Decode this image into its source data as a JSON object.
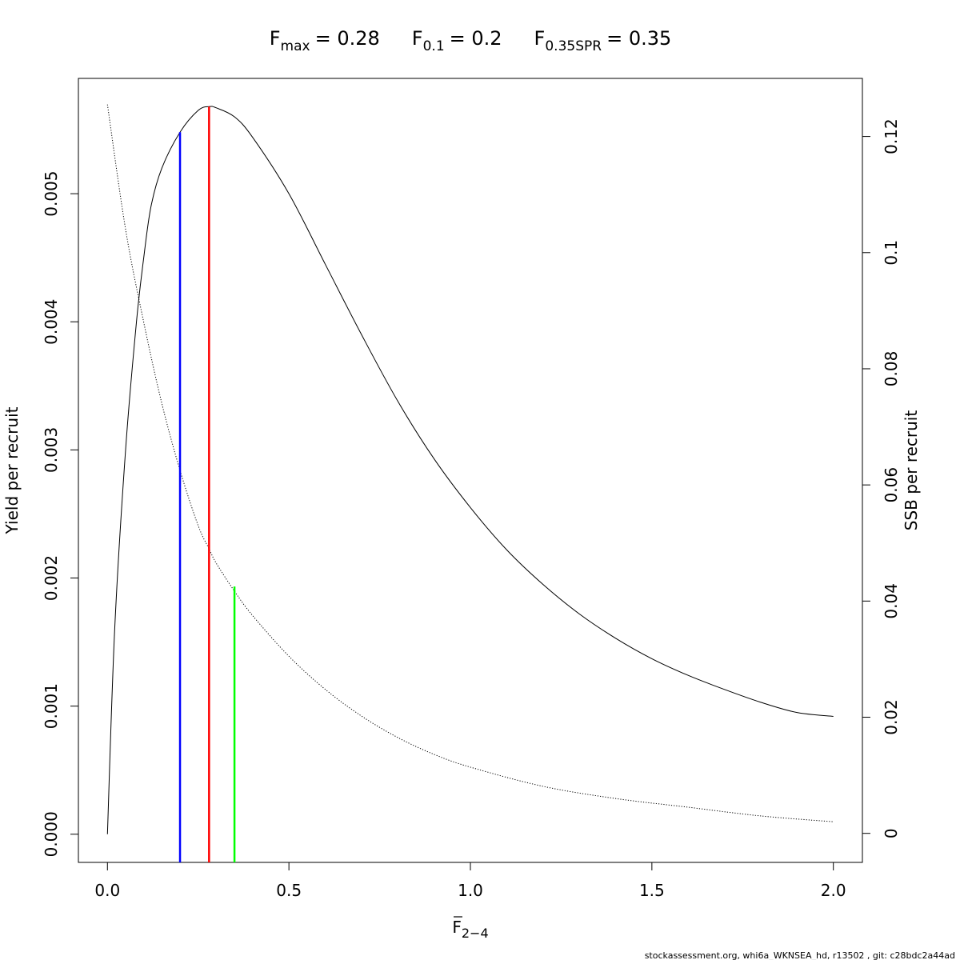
{
  "chart_data": {
    "type": "line",
    "title": {
      "fmax": {
        "label": "F",
        "sub": "max",
        "value": "= 0.28"
      },
      "f01": {
        "label": "F",
        "sub": "0.1",
        "value": "= 0.2"
      },
      "f035spr": {
        "label": "F",
        "sub": "0.35SPR",
        "value": "= 0.35"
      }
    },
    "xlabel": {
      "main": "F",
      "sub": "2−4"
    },
    "ylabel_left": "Yield per recruit",
    "ylabel_right": "SSB per recruit",
    "xlim": [
      -0.08,
      2.08
    ],
    "ylim_left": [
      -0.00022,
      0.0059
    ],
    "ylim_right": [
      -0.005,
      0.13
    ],
    "x_ticks": [
      {
        "value": 0.0,
        "label": "0.0"
      },
      {
        "value": 0.5,
        "label": "0.5"
      },
      {
        "value": 1.0,
        "label": "1.0"
      },
      {
        "value": 1.5,
        "label": "1.5"
      },
      {
        "value": 2.0,
        "label": "2.0"
      }
    ],
    "y_left_ticks": [
      {
        "value": 0.0,
        "label": "0.000"
      },
      {
        "value": 0.001,
        "label": "0.001"
      },
      {
        "value": 0.002,
        "label": "0.002"
      },
      {
        "value": 0.003,
        "label": "0.003"
      },
      {
        "value": 0.004,
        "label": "0.004"
      },
      {
        "value": 0.005,
        "label": "0.005"
      }
    ],
    "y_right_ticks": [
      {
        "value": 0.0,
        "label": "0"
      },
      {
        "value": 0.02,
        "label": "0.02"
      },
      {
        "value": 0.04,
        "label": "0.04"
      },
      {
        "value": 0.06,
        "label": "0.06"
      },
      {
        "value": 0.08,
        "label": "0.08"
      },
      {
        "value": 0.1,
        "label": "0.1"
      },
      {
        "value": 0.12,
        "label": "0.12"
      }
    ],
    "series": [
      {
        "axis": "left",
        "style": "solid",
        "x": [
          0,
          0.02,
          0.05,
          0.08,
          0.1,
          0.12,
          0.15,
          0.2,
          0.25,
          0.28,
          0.3,
          0.35,
          0.4,
          0.5,
          0.6,
          0.7,
          0.8,
          0.9,
          1.0,
          1.1,
          1.2,
          1.3,
          1.4,
          1.5,
          1.6,
          1.7,
          1.8,
          1.9,
          2.0
        ],
        "y": [
          0.0,
          0.0016,
          0.003,
          0.004,
          0.0045,
          0.0049,
          0.0052,
          0.00548,
          0.00565,
          0.00568,
          0.00567,
          0.0056,
          0.00544,
          0.005,
          0.00445,
          0.0039,
          0.00338,
          0.00293,
          0.00255,
          0.00222,
          0.00195,
          0.00172,
          0.00153,
          0.00137,
          0.00124,
          0.00113,
          0.00103,
          0.00095,
          0.00092
        ]
      },
      {
        "axis": "right",
        "style": "dotted",
        "x": [
          0,
          0.05,
          0.1,
          0.15,
          0.2,
          0.25,
          0.28,
          0.3,
          0.35,
          0.4,
          0.5,
          0.6,
          0.7,
          0.8,
          0.9,
          1.0,
          1.2,
          1.4,
          1.6,
          1.8,
          2.0
        ],
        "y": [
          0.1255,
          0.104,
          0.088,
          0.074,
          0.0625,
          0.053,
          0.049,
          0.0465,
          0.0417,
          0.0375,
          0.0305,
          0.0248,
          0.0202,
          0.0165,
          0.0136,
          0.0114,
          0.0081,
          0.006,
          0.0045,
          0.003,
          0.002
        ]
      }
    ],
    "reference_lines": [
      {
        "name": "Fmax",
        "x": 0.28,
        "axis": "left",
        "y_top": 0.00568,
        "color": "#ff0000"
      },
      {
        "name": "F0.1",
        "x": 0.2,
        "axis": "left",
        "y_top": 0.00548,
        "color": "#0000ff"
      },
      {
        "name": "F0.35SPR",
        "x": 0.35,
        "axis": "right",
        "y_top": 0.0425,
        "color": "#00ff00"
      }
    ],
    "footer": "stockassessment.org, whi6a_WKNSEA_hd, r13502 , git: c28bdc2a44ad"
  }
}
